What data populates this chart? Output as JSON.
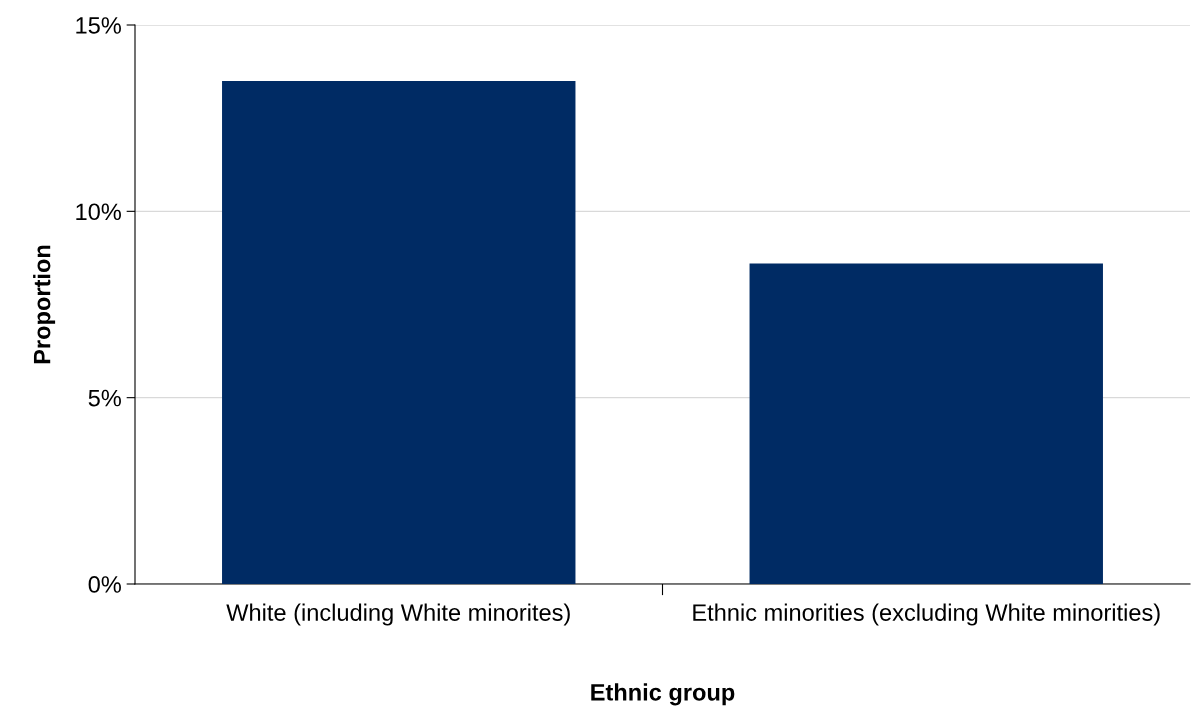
{
  "chart_data": {
    "type": "bar",
    "xlabel": "Ethnic group",
    "ylabel": "Proportion",
    "categories": [
      "White (including White minorites)",
      "Ethnic minorities (excluding White minorities)"
    ],
    "values": [
      13.5,
      8.6
    ],
    "color": "#002b64",
    "ylim": [
      0,
      15
    ],
    "yticks": [
      {
        "value": 0,
        "label": "0%"
      },
      {
        "value": 5,
        "label": "5%"
      },
      {
        "value": 10,
        "label": "10%"
      },
      {
        "value": 15,
        "label": "15%"
      }
    ],
    "grid": "y",
    "legend": false
  }
}
